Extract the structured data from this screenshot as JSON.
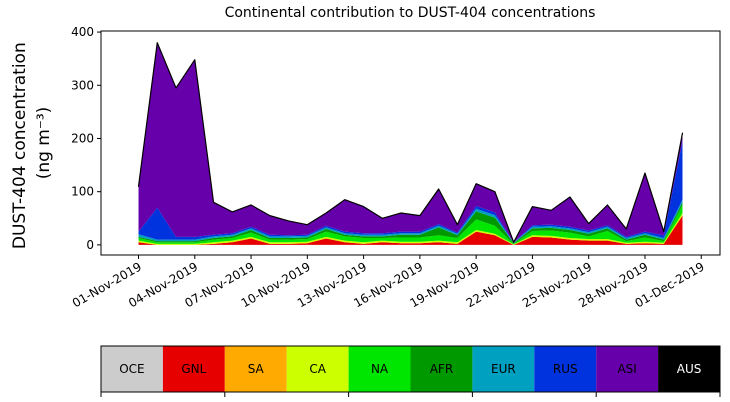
{
  "chart_data": {
    "type": "stacked-area",
    "title": "Continental contribution to DUST-404 concentrations",
    "ylabel": [
      "DUST-404 concentration",
      "(ng m⁻³)"
    ],
    "x": [
      "2019-11-01",
      "2019-11-02",
      "2019-11-03",
      "2019-11-04",
      "2019-11-05",
      "2019-11-06",
      "2019-11-07",
      "2019-11-08",
      "2019-11-09",
      "2019-11-10",
      "2019-11-11",
      "2019-11-12",
      "2019-11-13",
      "2019-11-14",
      "2019-11-15",
      "2019-11-16",
      "2019-11-17",
      "2019-11-18",
      "2019-11-19",
      "2019-11-20",
      "2019-11-21",
      "2019-11-22",
      "2019-11-23",
      "2019-11-24",
      "2019-11-25",
      "2019-11-26",
      "2019-11-27",
      "2019-11-28",
      "2019-11-29",
      "2019-11-30"
    ],
    "xlim": [
      "2019-10-30",
      "2019-12-02"
    ],
    "xticks": [
      {
        "value": "2019-11-01",
        "label": "01-Nov-2019"
      },
      {
        "value": "2019-11-04",
        "label": "04-Nov-2019"
      },
      {
        "value": "2019-11-07",
        "label": "07-Nov-2019"
      },
      {
        "value": "2019-11-10",
        "label": "10-Nov-2019"
      },
      {
        "value": "2019-11-13",
        "label": "13-Nov-2019"
      },
      {
        "value": "2019-11-16",
        "label": "16-Nov-2019"
      },
      {
        "value": "2019-11-19",
        "label": "19-Nov-2019"
      },
      {
        "value": "2019-11-22",
        "label": "22-Nov-2019"
      },
      {
        "value": "2019-11-25",
        "label": "25-Nov-2019"
      },
      {
        "value": "2019-11-28",
        "label": "28-Nov-2019"
      },
      {
        "value": "2019-12-01",
        "label": "01-Dec-2019"
      }
    ],
    "ylim": [
      -19,
      402
    ],
    "yticks": [
      0,
      100,
      200,
      300,
      400
    ],
    "series": [
      {
        "name": "OCE",
        "color": "#cccccc",
        "values": [
          0,
          0,
          0,
          0,
          0,
          0,
          0,
          0,
          0,
          0,
          0,
          0,
          0,
          0,
          0,
          0,
          0,
          0,
          0,
          0,
          0,
          0,
          0,
          0,
          0,
          0,
          0,
          0,
          0,
          0
        ]
      },
      {
        "name": "GNL",
        "color": "#e60000",
        "values": [
          5,
          0,
          0,
          0,
          2,
          5,
          12,
          2,
          2,
          3,
          12,
          5,
          2,
          5,
          3,
          3,
          5,
          2,
          25,
          18,
          0,
          15,
          14,
          10,
          8,
          8,
          2,
          3,
          2,
          55
        ]
      },
      {
        "name": "SA",
        "color": "#ffaa00",
        "values": [
          0,
          0,
          0,
          0,
          0,
          0,
          0,
          0,
          0,
          0,
          0,
          0,
          0,
          0,
          0,
          0,
          0,
          0,
          0,
          0,
          0,
          0,
          0,
          0,
          0,
          0,
          0,
          0,
          0,
          0
        ]
      },
      {
        "name": "CA",
        "color": "#ccff00",
        "values": [
          3,
          2,
          2,
          2,
          3,
          3,
          3,
          3,
          3,
          3,
          3,
          3,
          3,
          3,
          3,
          3,
          3,
          3,
          3,
          3,
          1,
          3,
          3,
          3,
          3,
          3,
          2,
          3,
          2,
          5
        ]
      },
      {
        "name": "NA",
        "color": "#00e600",
        "values": [
          5,
          3,
          3,
          3,
          5,
          5,
          8,
          5,
          5,
          5,
          10,
          8,
          8,
          5,
          8,
          8,
          10,
          8,
          20,
          15,
          1,
          8,
          10,
          10,
          5,
          15,
          3,
          8,
          3,
          15
        ]
      },
      {
        "name": "AFR",
        "color": "#009900",
        "values": [
          2,
          2,
          2,
          2,
          3,
          3,
          5,
          3,
          3,
          3,
          5,
          3,
          3,
          3,
          5,
          5,
          15,
          5,
          15,
          15,
          1,
          5,
          5,
          5,
          5,
          5,
          3,
          5,
          3,
          5
        ]
      },
      {
        "name": "EUR",
        "color": "#00a0c0",
        "values": [
          5,
          3,
          3,
          3,
          3,
          3,
          3,
          3,
          3,
          3,
          3,
          3,
          3,
          3,
          3,
          3,
          3,
          3,
          5,
          5,
          1,
          3,
          3,
          3,
          3,
          3,
          3,
          3,
          3,
          5
        ]
      },
      {
        "name": "RUS",
        "color": "#0033dd",
        "values": [
          5,
          60,
          5,
          5,
          3,
          3,
          3,
          3,
          2,
          2,
          3,
          3,
          3,
          3,
          3,
          3,
          3,
          2,
          5,
          5,
          0,
          3,
          3,
          3,
          3,
          3,
          2,
          3,
          5,
          110
        ]
      },
      {
        "name": "ASI",
        "color": "#6600aa",
        "values": [
          85,
          310,
          280,
          333,
          61,
          40,
          41,
          36,
          27,
          19,
          24,
          60,
          50,
          28,
          35,
          30,
          66,
          15,
          42,
          39,
          1,
          35,
          27,
          56,
          13,
          38,
          15,
          110,
          7,
          15
        ]
      },
      {
        "name": "AUS",
        "color": "#000000",
        "values": [
          0,
          0,
          0,
          0,
          0,
          0,
          0,
          0,
          0,
          0,
          0,
          0,
          0,
          0,
          0,
          0,
          0,
          0,
          0,
          0,
          0,
          0,
          0,
          0,
          0,
          0,
          0,
          0,
          0,
          0
        ]
      }
    ]
  }
}
